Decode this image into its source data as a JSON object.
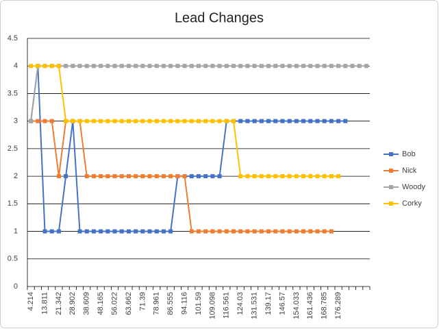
{
  "chart_data": {
    "type": "line",
    "title": "Lead Changes",
    "categories": [
      "4.214",
      null,
      "13.811",
      null,
      "21.342",
      null,
      "28.902",
      null,
      "38.609",
      null,
      "48.165",
      null,
      "56.022",
      null,
      "63.662",
      null,
      "71.39",
      null,
      "78.961",
      null,
      "86.555",
      null,
      "94.116",
      null,
      "101.59",
      null,
      "109.098",
      null,
      "116.561",
      null,
      "124.03",
      null,
      "131.531",
      null,
      "139.17",
      null,
      "146.57",
      null,
      "154.033",
      null,
      "161.436",
      null,
      "168.785",
      null,
      "176.289",
      null,
      null,
      null,
      null
    ],
    "series": [
      {
        "name": "Bob",
        "color": "#4472c4",
        "values": [
          3,
          4,
          1,
          1,
          1,
          2,
          3,
          1,
          1,
          1,
          1,
          1,
          1,
          1,
          1,
          1,
          1,
          1,
          1,
          1,
          1,
          2,
          2,
          2,
          2,
          2,
          2,
          2,
          3,
          3,
          3,
          3,
          3,
          3,
          3,
          3,
          3,
          3,
          3,
          3,
          3,
          3,
          3,
          3,
          3,
          3,
          null,
          null,
          null
        ]
      },
      {
        "name": "Nick",
        "color": "#ed7d31",
        "values": [
          3,
          3,
          3,
          3,
          2,
          3,
          3,
          3,
          2,
          2,
          2,
          2,
          2,
          2,
          2,
          2,
          2,
          2,
          2,
          2,
          2,
          2,
          2,
          1,
          1,
          1,
          1,
          1,
          1,
          1,
          1,
          1,
          1,
          1,
          1,
          1,
          1,
          1,
          1,
          1,
          1,
          1,
          1,
          1,
          null,
          null,
          null,
          null,
          null
        ]
      },
      {
        "name": "Woody",
        "color": "#a5a5a5",
        "values": [
          3,
          4,
          4,
          4,
          4,
          4,
          4,
          4,
          4,
          4,
          4,
          4,
          4,
          4,
          4,
          4,
          4,
          4,
          4,
          4,
          4,
          4,
          4,
          4,
          4,
          4,
          4,
          4,
          4,
          4,
          4,
          4,
          4,
          4,
          4,
          4,
          4,
          4,
          4,
          4,
          4,
          4,
          4,
          4,
          4,
          4,
          4,
          4,
          4
        ]
      },
      {
        "name": "Corky",
        "color": "#ffc000",
        "values": [
          4,
          4,
          4,
          4,
          4,
          3,
          3,
          3,
          3,
          3,
          3,
          3,
          3,
          3,
          3,
          3,
          3,
          3,
          3,
          3,
          3,
          3,
          3,
          3,
          3,
          3,
          3,
          3,
          3,
          3,
          2,
          2,
          2,
          2,
          2,
          2,
          2,
          2,
          2,
          2,
          2,
          2,
          2,
          2,
          2,
          null,
          null,
          null,
          null
        ]
      }
    ],
    "ylim": [
      0,
      4.5
    ],
    "yticks": [
      0,
      0.5,
      1,
      1.5,
      2,
      2.5,
      3,
      3.5,
      4,
      4.5
    ],
    "grid": true,
    "legend": "right"
  }
}
